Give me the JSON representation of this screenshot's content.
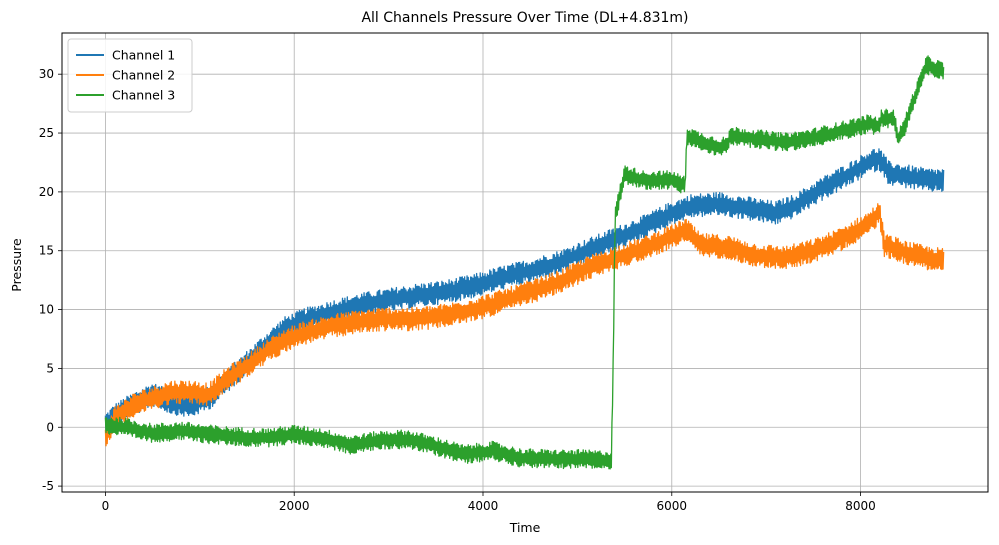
{
  "chart_data": {
    "type": "line",
    "title": "All Channels Pressure Over Time (DL+4.831m)",
    "xlabel": "Time",
    "ylabel": "Pressure",
    "xlim": [
      -460,
      9350
    ],
    "ylim": [
      -5.5,
      33.5
    ],
    "xticks": [
      0,
      2000,
      4000,
      6000,
      8000
    ],
    "yticks": [
      -5,
      0,
      5,
      10,
      15,
      20,
      25,
      30
    ],
    "grid": true,
    "legend_position": "top-left",
    "series": [
      {
        "name": "Channel 1",
        "color": "#1f77b4",
        "noise": 1.0,
        "points": [
          [
            0,
            0.2
          ],
          [
            100,
            1.0
          ],
          [
            300,
            2.0
          ],
          [
            500,
            2.8
          ],
          [
            700,
            2.1
          ],
          [
            900,
            1.8
          ],
          [
            1100,
            2.5
          ],
          [
            1300,
            4.0
          ],
          [
            1500,
            5.5
          ],
          [
            1700,
            7.0
          ],
          [
            1900,
            8.4
          ],
          [
            2100,
            9.1
          ],
          [
            2400,
            9.8
          ],
          [
            2700,
            10.4
          ],
          [
            3000,
            10.8
          ],
          [
            3300,
            11.2
          ],
          [
            3600,
            11.5
          ],
          [
            3900,
            12.0
          ],
          [
            4200,
            12.7
          ],
          [
            4500,
            13.3
          ],
          [
            4800,
            14.0
          ],
          [
            5100,
            15.0
          ],
          [
            5400,
            16.0
          ],
          [
            5700,
            17.0
          ],
          [
            6000,
            18.2
          ],
          [
            6200,
            18.8
          ],
          [
            6500,
            19.0
          ],
          [
            6800,
            18.6
          ],
          [
            7100,
            18.2
          ],
          [
            7300,
            18.8
          ],
          [
            7600,
            20.3
          ],
          [
            7900,
            21.6
          ],
          [
            8100,
            22.6
          ],
          [
            8200,
            22.8
          ],
          [
            8300,
            21.6
          ],
          [
            8500,
            21.3
          ],
          [
            8700,
            21.0
          ],
          [
            8880,
            21.0
          ]
        ]
      },
      {
        "name": "Channel 2",
        "color": "#ff7f0e",
        "noise": 1.0,
        "points": [
          [
            0,
            -0.8
          ],
          [
            100,
            0.8
          ],
          [
            300,
            1.9
          ],
          [
            500,
            2.5
          ],
          [
            700,
            3.0
          ],
          [
            900,
            3.0
          ],
          [
            1100,
            2.8
          ],
          [
            1300,
            4.2
          ],
          [
            1500,
            5.2
          ],
          [
            1700,
            6.4
          ],
          [
            1900,
            7.4
          ],
          [
            2100,
            8.0
          ],
          [
            2400,
            8.6
          ],
          [
            2700,
            9.0
          ],
          [
            3000,
            9.2
          ],
          [
            3300,
            9.2
          ],
          [
            3600,
            9.5
          ],
          [
            3900,
            10.0
          ],
          [
            4200,
            10.7
          ],
          [
            4500,
            11.5
          ],
          [
            4800,
            12.3
          ],
          [
            5100,
            13.5
          ],
          [
            5400,
            14.4
          ],
          [
            5700,
            15.2
          ],
          [
            6000,
            16.2
          ],
          [
            6150,
            16.8
          ],
          [
            6300,
            15.5
          ],
          [
            6600,
            15.3
          ],
          [
            6900,
            14.6
          ],
          [
            7200,
            14.4
          ],
          [
            7500,
            15.0
          ],
          [
            7800,
            16.0
          ],
          [
            8100,
            17.4
          ],
          [
            8200,
            18.3
          ],
          [
            8250,
            15.5
          ],
          [
            8500,
            14.8
          ],
          [
            8700,
            14.4
          ],
          [
            8880,
            14.2
          ]
        ]
      },
      {
        "name": "Channel 3",
        "color": "#2ca02c",
        "noise": 0.8,
        "points": [
          [
            0,
            0.2
          ],
          [
            200,
            0.0
          ],
          [
            500,
            -0.5
          ],
          [
            800,
            -0.3
          ],
          [
            1100,
            -0.6
          ],
          [
            1400,
            -0.8
          ],
          [
            1700,
            -0.9
          ],
          [
            2000,
            -0.6
          ],
          [
            2300,
            -0.9
          ],
          [
            2600,
            -1.5
          ],
          [
            2900,
            -1.1
          ],
          [
            3200,
            -1.0
          ],
          [
            3500,
            -1.6
          ],
          [
            3800,
            -2.3
          ],
          [
            4100,
            -2.0
          ],
          [
            4400,
            -2.6
          ],
          [
            4700,
            -2.7
          ],
          [
            5000,
            -2.7
          ],
          [
            5360,
            -2.8
          ],
          [
            5380,
            6.0
          ],
          [
            5400,
            18.0
          ],
          [
            5500,
            21.5
          ],
          [
            5700,
            21.0
          ],
          [
            6000,
            21.0
          ],
          [
            6140,
            20.5
          ],
          [
            6160,
            24.8
          ],
          [
            6300,
            24.3
          ],
          [
            6500,
            23.8
          ],
          [
            6600,
            24.0
          ],
          [
            6620,
            24.8
          ],
          [
            6900,
            24.5
          ],
          [
            7200,
            24.2
          ],
          [
            7500,
            24.6
          ],
          [
            7800,
            25.2
          ],
          [
            8100,
            25.8
          ],
          [
            8200,
            25.5
          ],
          [
            8220,
            26.2
          ],
          [
            8350,
            26.3
          ],
          [
            8400,
            24.5
          ],
          [
            8450,
            25.2
          ],
          [
            8550,
            27.5
          ],
          [
            8700,
            30.8
          ],
          [
            8880,
            30.2
          ]
        ]
      }
    ]
  }
}
